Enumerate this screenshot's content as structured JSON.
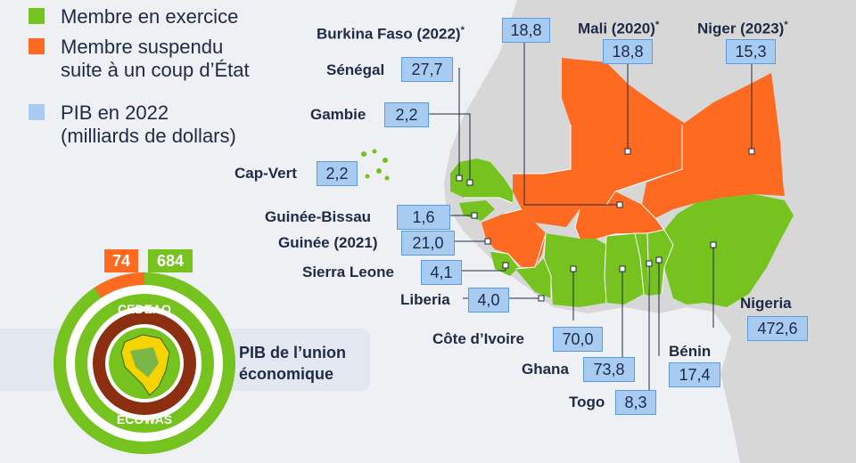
{
  "legend": {
    "member": "Membre en exercice",
    "suspended": "Membre suspendu\nsuite à un coup d’État",
    "gdp": "PIB en 2022\n(milliards de dollars)"
  },
  "colors": {
    "member": "#76c21f",
    "suspended": "#ff6a21",
    "gdp": "#a8cbf2",
    "land": "#d7d7d7"
  },
  "countries": [
    {
      "key": "burkina",
      "name": "Burkina Faso (2022)",
      "star": "*",
      "value": "18,8",
      "status": "suspended"
    },
    {
      "key": "mali",
      "name": "Mali (2020)",
      "star": "*",
      "value": "18,8",
      "status": "suspended"
    },
    {
      "key": "niger",
      "name": "Niger (2023)",
      "star": "*",
      "value": "15,3",
      "status": "suspended"
    },
    {
      "key": "senegal",
      "name": "Sénégal",
      "value": "27,7",
      "status": "member"
    },
    {
      "key": "gambie",
      "name": "Gambie",
      "value": "2,2",
      "status": "member"
    },
    {
      "key": "capvert",
      "name": "Cap-Vert",
      "value": "2,2",
      "status": "member"
    },
    {
      "key": "guineebissau",
      "name": "Guinée-Bissau",
      "value": "1,6",
      "status": "member"
    },
    {
      "key": "guinee",
      "name": "Guinée (2021)",
      "value": "21,0",
      "status": "suspended"
    },
    {
      "key": "sierraleone",
      "name": "Sierra Leone",
      "value": "4,1",
      "status": "member"
    },
    {
      "key": "liberia",
      "name": "Liberia",
      "value": "4,0",
      "status": "member"
    },
    {
      "key": "cotedivoire",
      "name": "Côte d’Ivoire",
      "value": "70,0",
      "status": "member"
    },
    {
      "key": "ghana",
      "name": "Ghana",
      "value": "73,8",
      "status": "member"
    },
    {
      "key": "togo",
      "name": "Togo",
      "value": "8,3",
      "status": "member"
    },
    {
      "key": "benin",
      "name": "Bénin",
      "value": "17,4",
      "status": "member"
    },
    {
      "key": "nigeria",
      "name": "Nigeria",
      "value": "472,6",
      "status": "member"
    }
  ],
  "union": {
    "suspended_gdp": "74",
    "member_gdp": "684",
    "label": "PIB de l’union\néconomique",
    "logo_top": "CEDEAO",
    "logo_bottom": "ECOWAS"
  }
}
